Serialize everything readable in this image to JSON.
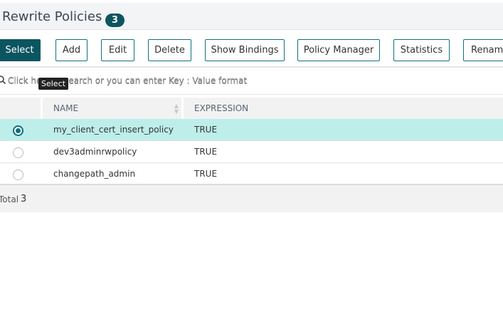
{
  "header": {
    "title": "Rewrite Policies",
    "count": "3"
  },
  "toolbar": {
    "buttons": [
      "Select",
      "Add",
      "Edit",
      "Delete",
      "Show Bindings",
      "Policy Manager",
      "Statistics",
      "Rename"
    ]
  },
  "tooltip": "Select",
  "search": {
    "placeholder": "Click here to search or you can enter Key : Value format",
    "placeholder_visible": "Click he",
    "placeholder_rest": "earch or you can enter Key : Value format"
  },
  "table": {
    "columns": [
      "NAME",
      "EXPRESSION"
    ],
    "rows": [
      {
        "name": "my_client_cert_insert_policy",
        "expression": "TRUE",
        "selected": true
      },
      {
        "name": "dev3adminrwpolicy",
        "expression": "TRUE",
        "selected": false
      },
      {
        "name": "changepath_admin",
        "expression": "TRUE",
        "selected": false
      }
    ]
  },
  "footer": {
    "label": "Total",
    "count": "3"
  },
  "colors": {
    "accent": "#0b5561",
    "selected_row": "#bdeeea"
  }
}
